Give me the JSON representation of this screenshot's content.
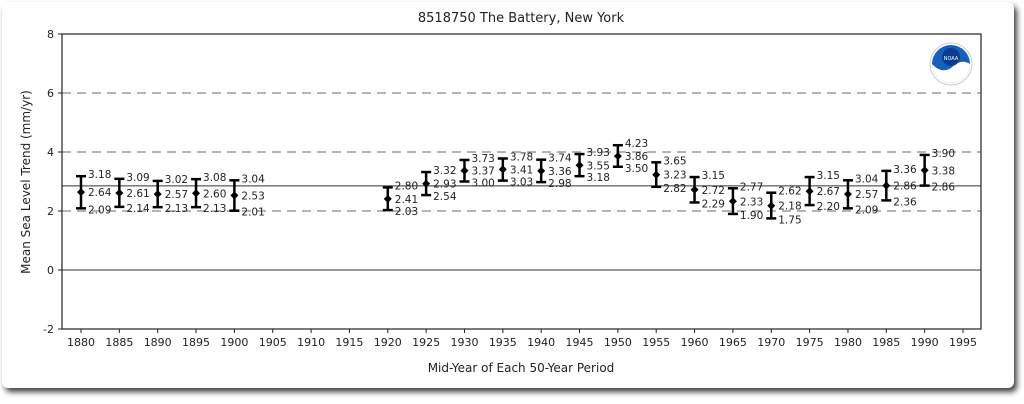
{
  "chart_data": {
    "type": "errorbar",
    "title": "8518750 The Battery, New York",
    "xlabel": "Mid-Year of Each 50-Year Period",
    "ylabel": "Mean Sea Level Trend (mm/yr)",
    "ylim": [
      -2,
      8
    ],
    "yticks": [
      -2,
      0,
      2,
      4,
      6,
      8
    ],
    "xticks": [
      1880,
      1885,
      1890,
      1895,
      1900,
      1905,
      1910,
      1915,
      1920,
      1925,
      1930,
      1935,
      1940,
      1945,
      1950,
      1955,
      1960,
      1965,
      1970,
      1975,
      1980,
      1985,
      1990,
      1995
    ],
    "gridlines_dashed": [
      2,
      4,
      6
    ],
    "reference_lines": [
      0,
      2.85
    ],
    "logo": "NOAA",
    "points": [
      {
        "year": 1880,
        "upper": "3.18",
        "mean": "2.64",
        "lower": "2.09"
      },
      {
        "year": 1885,
        "upper": "3.09",
        "mean": "2.61",
        "lower": "2.14"
      },
      {
        "year": 1890,
        "upper": "3.02",
        "mean": "2.57",
        "lower": "2.13"
      },
      {
        "year": 1895,
        "upper": "3.08",
        "mean": "2.60",
        "lower": "2.13"
      },
      {
        "year": 1900,
        "upper": "3.04",
        "mean": "2.53",
        "lower": "2.01"
      },
      {
        "year": 1920,
        "upper": "2.80",
        "mean": "2.41",
        "lower": "2.03"
      },
      {
        "year": 1925,
        "upper": "3.32",
        "mean": "2.93",
        "lower": "2.54"
      },
      {
        "year": 1930,
        "upper": "3.73",
        "mean": "3.37",
        "lower": "3.00"
      },
      {
        "year": 1935,
        "upper": "3.78",
        "mean": "3.41",
        "lower": "3.03"
      },
      {
        "year": 1940,
        "upper": "3.74",
        "mean": "3.36",
        "lower": "2.98"
      },
      {
        "year": 1945,
        "upper": "3.93",
        "mean": "3.55",
        "lower": "3.18"
      },
      {
        "year": 1950,
        "upper": "4.23",
        "mean": "3.86",
        "lower": "3.50"
      },
      {
        "year": 1955,
        "upper": "3.65",
        "mean": "3.23",
        "lower": "2.82"
      },
      {
        "year": 1960,
        "upper": "3.15",
        "mean": "2.72",
        "lower": "2.29"
      },
      {
        "year": 1965,
        "upper": "2.77",
        "mean": "2.33",
        "lower": "1.90"
      },
      {
        "year": 1970,
        "upper": "2.62",
        "mean": "2.18",
        "lower": "1.75"
      },
      {
        "year": 1975,
        "upper": "3.15",
        "mean": "2.67",
        "lower": "2.20"
      },
      {
        "year": 1980,
        "upper": "3.04",
        "mean": "2.57",
        "lower": "2.09"
      },
      {
        "year": 1985,
        "upper": "3.36",
        "mean": "2.86",
        "lower": "2.36"
      },
      {
        "year": 1990,
        "upper": "3.90",
        "mean": "3.38",
        "lower": "2.86"
      }
    ]
  }
}
